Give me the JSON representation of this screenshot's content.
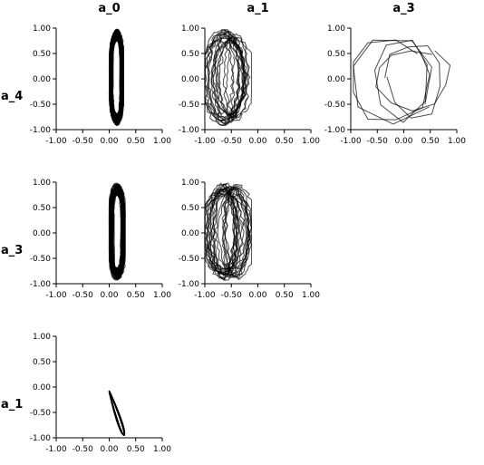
{
  "chart_data": {
    "type": "line",
    "description_kind": "pairwise phase-portrait grid",
    "column_titles": [
      "a_0",
      "a_1",
      "a_3"
    ],
    "row_titles": [
      "a_4",
      "a_3",
      "a_1"
    ],
    "axis_range": [
      -1.0,
      1.0
    ],
    "tick_values": [
      -1.0,
      -0.5,
      0.0,
      0.5,
      1.0
    ],
    "tick_labels": [
      "-1.00",
      "-0.50",
      "0.00",
      "0.50",
      "1.00"
    ],
    "grid": false,
    "line_color": "#000000",
    "panels": [
      {
        "row": 0,
        "col": 0,
        "x_var": "a_0",
        "y_var": "a_4",
        "style": "narrow-band",
        "x_range": [
          0.0,
          0.27
        ],
        "y_range": [
          -0.92,
          0.98
        ],
        "loops": 60,
        "opacity": 0.7,
        "seed": 1
      },
      {
        "row": 0,
        "col": 1,
        "x_var": "a_1",
        "y_var": "a_4",
        "style": "tangle",
        "x_range": [
          -1.0,
          -0.12
        ],
        "y_range": [
          -0.92,
          0.97
        ],
        "loops": 18,
        "opacity": 0.65,
        "seed": 7
      },
      {
        "row": 0,
        "col": 2,
        "x_var": "a_3",
        "y_var": "a_4",
        "style": "polygon-loops",
        "x_range": [
          -0.95,
          0.88
        ],
        "y_range": [
          -0.92,
          0.98
        ],
        "loops": 5,
        "opacity": 0.7,
        "seed": 13
      },
      {
        "row": 1,
        "col": 0,
        "x_var": "a_0",
        "y_var": "a_3",
        "style": "narrow-band",
        "x_range": [
          0.0,
          0.3
        ],
        "y_range": [
          -0.93,
          0.98
        ],
        "loops": 60,
        "opacity": 0.7,
        "seed": 21
      },
      {
        "row": 1,
        "col": 1,
        "x_var": "a_1",
        "y_var": "a_3",
        "style": "tangle",
        "x_range": [
          -1.0,
          -0.12
        ],
        "y_range": [
          -0.93,
          0.98
        ],
        "loops": 22,
        "opacity": 0.65,
        "seed": 29
      },
      {
        "row": 2,
        "col": 0,
        "x_var": "a_0",
        "y_var": "a_1",
        "style": "needle",
        "x_start": [
          0.0,
          -0.08
        ],
        "x_end": [
          0.28,
          -0.95
        ],
        "width": 0.07,
        "loops": 40,
        "opacity": 0.8,
        "seed": 37
      }
    ]
  }
}
